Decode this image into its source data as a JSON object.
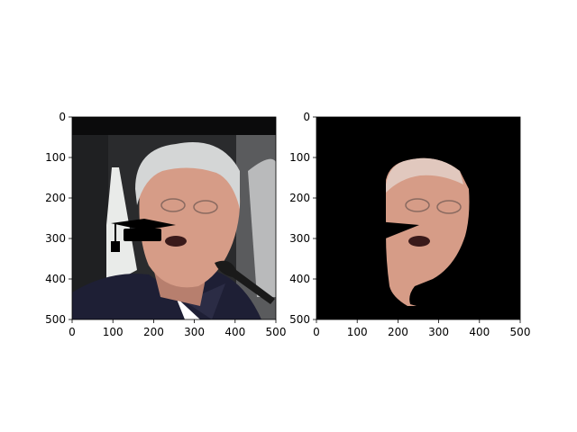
{
  "figure": {
    "panels": [
      {
        "name": "left",
        "content": "photo-with-graduation-cap-overlay",
        "x_ticks": [
          "0",
          "100",
          "200",
          "300",
          "400",
          "500"
        ],
        "y_ticks": [
          "0",
          "100",
          "200",
          "300",
          "400",
          "500"
        ]
      },
      {
        "name": "right",
        "content": "segmented-face-on-black",
        "x_ticks": [
          "0",
          "100",
          "200",
          "300",
          "400",
          "500"
        ],
        "y_ticks": [
          "0",
          "100",
          "200",
          "300",
          "400",
          "500"
        ]
      }
    ],
    "colors": {
      "background": "#ffffff",
      "mask_black": "#000000",
      "skin": "#d69c87",
      "hair": "#d4d6d6",
      "shirt": "#1e1f35",
      "photo_bg_dark": "#2a2b2d"
    }
  }
}
